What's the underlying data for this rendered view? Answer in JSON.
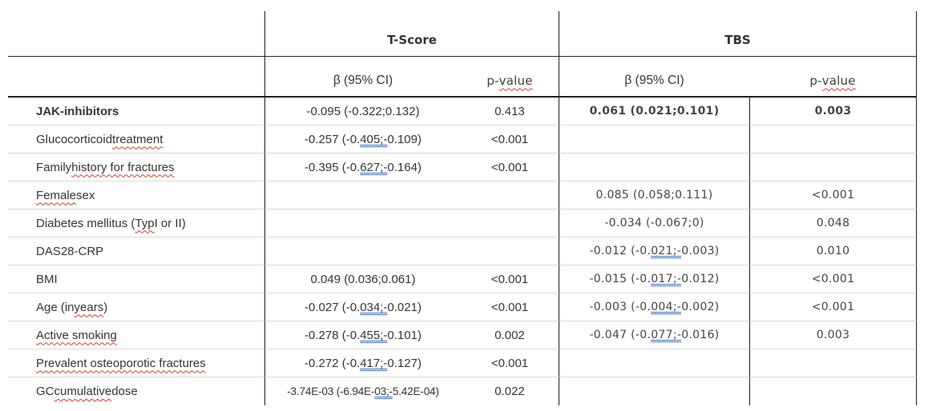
{
  "colors": {
    "rule_dark": "#1f1f1f",
    "rule_row_grey": "#dadada",
    "spellcheck_red": "#d33a2f",
    "grammar_blue": "#3a70c2",
    "text_dark": "#353535"
  },
  "table": {
    "group_headers": {
      "tscore": "T-Score",
      "tbs": "TBS"
    },
    "col_headers": {
      "beta_tscore": "β (95% CI)",
      "beta_tbs": "β (95% CI)",
      "p_tscore": [
        {
          "t": "p-"
        },
        {
          "t": "value",
          "s": true
        }
      ],
      "p_tbs": [
        {
          "t": "p-"
        },
        {
          "t": "value",
          "s": true
        }
      ]
    },
    "rows": [
      {
        "label": [
          {
            "t": "JAK-inhibitors"
          }
        ],
        "label_bold": true,
        "t_beta": [
          {
            "t": "-0.095 (-0.322;0.132)"
          }
        ],
        "t_p": "0.413",
        "tbs_beta": [
          {
            "t": "0.061 (0.021;0.101)"
          }
        ],
        "tbs_p": "0.003",
        "tbs_bold": true
      },
      {
        "label": [
          {
            "t": "Glucocorticoid "
          },
          {
            "t": "treatment",
            "s": true
          }
        ],
        "label_bold": false,
        "t_beta": [
          {
            "t": "-0.257 (-0."
          },
          {
            "t": "405;-",
            "u": true
          },
          {
            "t": "0.109)"
          }
        ],
        "t_p": "<0.001",
        "tbs_beta": null,
        "tbs_p": "",
        "tbs_bold": false
      },
      {
        "label": [
          {
            "t": "Family "
          },
          {
            "t": "history for fractures",
            "s": true
          }
        ],
        "label_bold": false,
        "t_beta": [
          {
            "t": "-0.395 (-0."
          },
          {
            "t": "627;-",
            "u": true
          },
          {
            "t": "0.164)"
          }
        ],
        "t_p": "<0.001",
        "tbs_beta": null,
        "tbs_p": "",
        "tbs_bold": false
      },
      {
        "label": [
          {
            "t": "Female",
            "s": true
          },
          {
            "t": " sex"
          }
        ],
        "label_bold": false,
        "t_beta": null,
        "t_p": "",
        "tbs_beta": [
          {
            "t": "0.085 (0.058;0.111)"
          }
        ],
        "tbs_p": "<0.001",
        "tbs_bold": false
      },
      {
        "label": [
          {
            "t": "Diabetes mellitus ("
          },
          {
            "t": "Typ",
            "s": true
          },
          {
            "t": " I or II)"
          }
        ],
        "label_bold": false,
        "t_beta": null,
        "t_p": "",
        "tbs_beta": [
          {
            "t": "-0.034 (-0.067;0)"
          }
        ],
        "tbs_p": "0.048",
        "tbs_bold": false
      },
      {
        "label": [
          {
            "t": "DAS28-CRP"
          }
        ],
        "label_bold": false,
        "t_beta": null,
        "t_p": "",
        "tbs_beta": [
          {
            "t": "-0.012 (-0."
          },
          {
            "t": "021;-",
            "u": true
          },
          {
            "t": "0.003)"
          }
        ],
        "tbs_p": "0.010",
        "tbs_bold": false
      },
      {
        "label": [
          {
            "t": "BMI"
          }
        ],
        "label_bold": false,
        "t_beta": [
          {
            "t": "0.049 (0.036;0.061)"
          }
        ],
        "t_p": "<0.001",
        "tbs_beta": [
          {
            "t": "-0.015 (-0."
          },
          {
            "t": "017;-",
            "u": true
          },
          {
            "t": "0.012)"
          }
        ],
        "tbs_p": "<0.001",
        "tbs_bold": false
      },
      {
        "label": [
          {
            "t": "Age (in "
          },
          {
            "t": "years",
            "s": true
          },
          {
            "t": ")"
          }
        ],
        "label_bold": false,
        "t_beta": [
          {
            "t": "-0.027 (-0."
          },
          {
            "t": "034;-",
            "u": true
          },
          {
            "t": "0.021)"
          }
        ],
        "t_p": "<0.001",
        "tbs_beta": [
          {
            "t": "-0.003 (-0."
          },
          {
            "t": "004;-",
            "u": true
          },
          {
            "t": "0.002)"
          }
        ],
        "tbs_p": "<0.001",
        "tbs_bold": false
      },
      {
        "label": [
          {
            "t": "Active smoking",
            "s": true
          }
        ],
        "label_bold": false,
        "t_beta": [
          {
            "t": "-0.278 (-0."
          },
          {
            "t": "455;-",
            "u": true
          },
          {
            "t": "0.101)"
          }
        ],
        "t_p": "0.002",
        "tbs_beta": [
          {
            "t": "-0.047 (-0."
          },
          {
            "t": "077;-",
            "u": true
          },
          {
            "t": "0.016)"
          }
        ],
        "tbs_p": "0.003",
        "tbs_bold": false
      },
      {
        "label": [
          {
            "t": "Prevalent osteoporotic fractures",
            "s": true
          }
        ],
        "label_bold": false,
        "t_beta": [
          {
            "t": "-0.272 (-0."
          },
          {
            "t": "417;-",
            "u": true
          },
          {
            "t": "0.127)"
          }
        ],
        "t_p": "<0.001",
        "tbs_beta": null,
        "tbs_p": "",
        "tbs_bold": false
      },
      {
        "label": [
          {
            "t": "GC "
          },
          {
            "t": "cumulative",
            "s": true
          },
          {
            "t": " dose"
          }
        ],
        "label_bold": false,
        "t_beta": [
          {
            "t": "-3.74E-03 (-6.94E-"
          },
          {
            "t": "03;-",
            "u": true
          },
          {
            "t": "5.42E-04)"
          }
        ],
        "t_p": "0.022",
        "tbs_beta": null,
        "tbs_p": "",
        "tbs_bold": false
      }
    ]
  }
}
